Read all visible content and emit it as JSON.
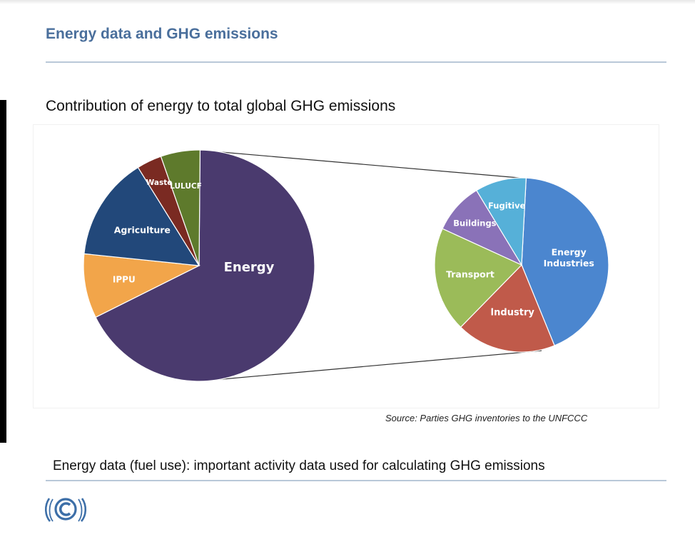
{
  "slide": {
    "title": "Energy data and GHG emissions",
    "subtitle": "Contribution of energy to total global GHG emissions",
    "source": "Source: Parties GHG inventories to the UNFCCC",
    "bottom_text": "Energy data (fuel use): important activity data used for calculating GHG emissions"
  },
  "logo": {
    "icon": "unfccc-logo-icon",
    "color": "#3d6fa8"
  },
  "chart_data": [
    {
      "type": "pie",
      "slices": [
        {
          "label": "Energy",
          "value": 67.5,
          "color": "#4a3a6e"
        },
        {
          "label": "IPPU",
          "value": 9,
          "color": "#f2a54a"
        },
        {
          "label": "Agriculture",
          "value": 14.5,
          "color": "#22487a"
        },
        {
          "label": "Waste",
          "value": 3.5,
          "color": "#7a2a22"
        },
        {
          "label": "LULUCF",
          "value": 5.5,
          "color": "#5e7a2c"
        }
      ]
    },
    {
      "type": "pie",
      "breakdown_of": "Energy",
      "slices": [
        {
          "label": "Energy Industries",
          "value": 43,
          "color": "#4b86cf"
        },
        {
          "label": "Industry",
          "value": 18.5,
          "color": "#c05a4a"
        },
        {
          "label": "Transport",
          "value": 19.5,
          "color": "#9bbb59"
        },
        {
          "label": "Buildings",
          "value": 9.5,
          "color": "#8a72b8"
        },
        {
          "label": "Fugitive",
          "value": 9.5,
          "color": "#56b0d8"
        }
      ]
    }
  ]
}
